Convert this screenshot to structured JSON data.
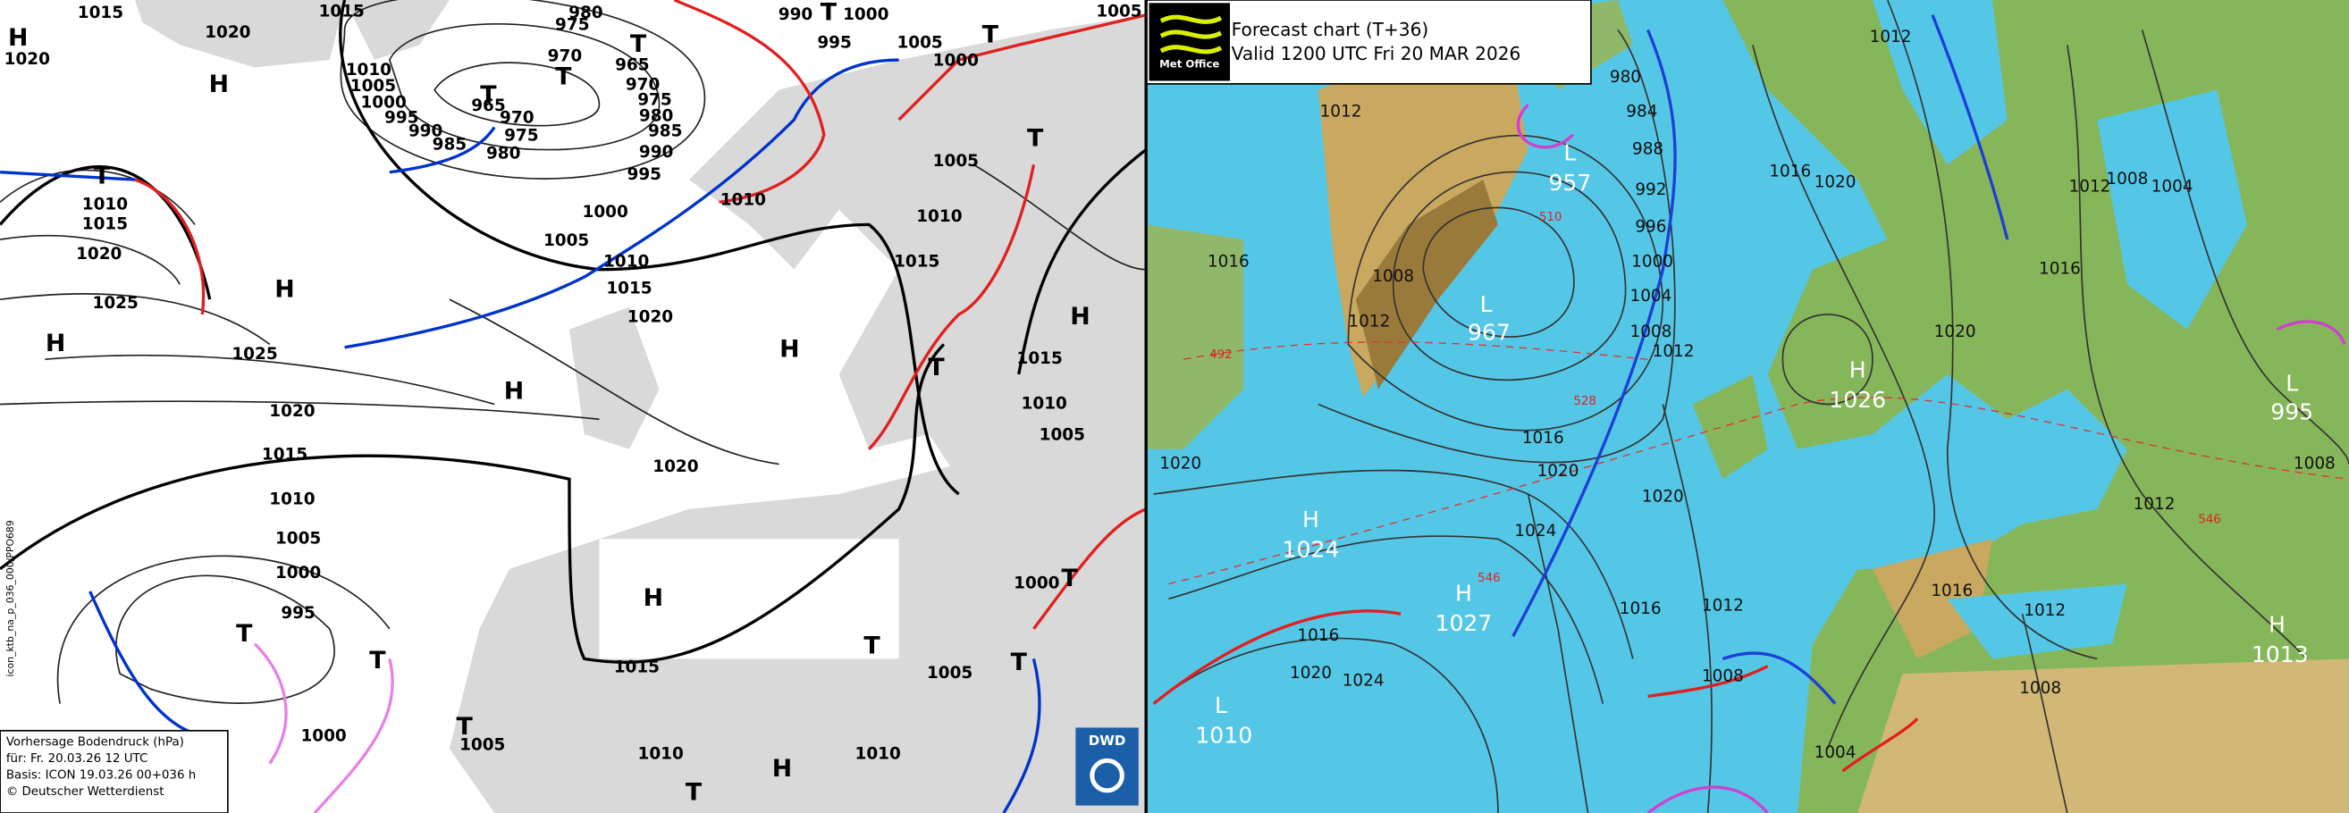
{
  "left_map": {
    "labels": [
      "1015",
      "1020",
      "1015",
      "H",
      "1020",
      "H",
      "1010",
      "1005",
      "1000",
      "995",
      "990",
      "985",
      "980",
      "975",
      "970",
      "965",
      "T",
      "T",
      "970",
      "975",
      "980",
      "965",
      "970",
      "975",
      "980",
      "985",
      "990",
      "995",
      "T",
      "990",
      "T",
      "1000",
      "995",
      "1005",
      "1000",
      "T",
      "1005",
      "T",
      "1010",
      "1015",
      "1020",
      "1025",
      "H",
      "H",
      "1025",
      "1020",
      "1015",
      "1010",
      "1005",
      "1000",
      "995",
      "T",
      "T",
      "1000",
      "T",
      "1005",
      "1010",
      "1000",
      "1005",
      "1010",
      "1015",
      "1020",
      "1005",
      "1010",
      "1015",
      "T",
      "H",
      "H",
      "H",
      "1015",
      "1010",
      "1005",
      "1020",
      "T",
      "H",
      "1015",
      "T",
      "1005",
      "1000",
      "T",
      "T",
      "1010",
      "1010",
      "T",
      "H"
    ],
    "legend": [
      "Vorhersage Bodendruck (hPa)",
      "für:  Fr. 20.03.26  12 UTC",
      "Basis: ICON  19.03.26 00+036 h",
      "© Deutscher Wetterdienst"
    ],
    "side_label": "icon_ktb_na_p_036_000/PPO689",
    "logo": "DWD"
  },
  "right_map": {
    "title": "Forecast chart (T+36)",
    "valid": "Valid 1200 UTC Fri 20 MAR 2026",
    "logo": "Met Office",
    "labels": [
      "1012",
      "L",
      "957",
      "L",
      "967",
      "1016",
      "1012",
      "1008",
      "1020",
      "H",
      "1024",
      "H",
      "1027",
      "L",
      "1010",
      "1016",
      "1020",
      "1024",
      "1016",
      "1020",
      "1024",
      "980",
      "984",
      "988",
      "992",
      "996",
      "1000",
      "1004",
      "1008",
      "1012",
      "1020",
      "1016",
      "1012",
      "1008",
      "1004",
      "H",
      "1026",
      "1016",
      "1020",
      "1012",
      "1020",
      "1016",
      "1012",
      "1008",
      "1004",
      "L",
      "995",
      "1008",
      "1012",
      "1016",
      "1012",
      "1008",
      "H",
      "1013",
      "546",
      "546",
      "528",
      "510",
      "492"
    ]
  }
}
